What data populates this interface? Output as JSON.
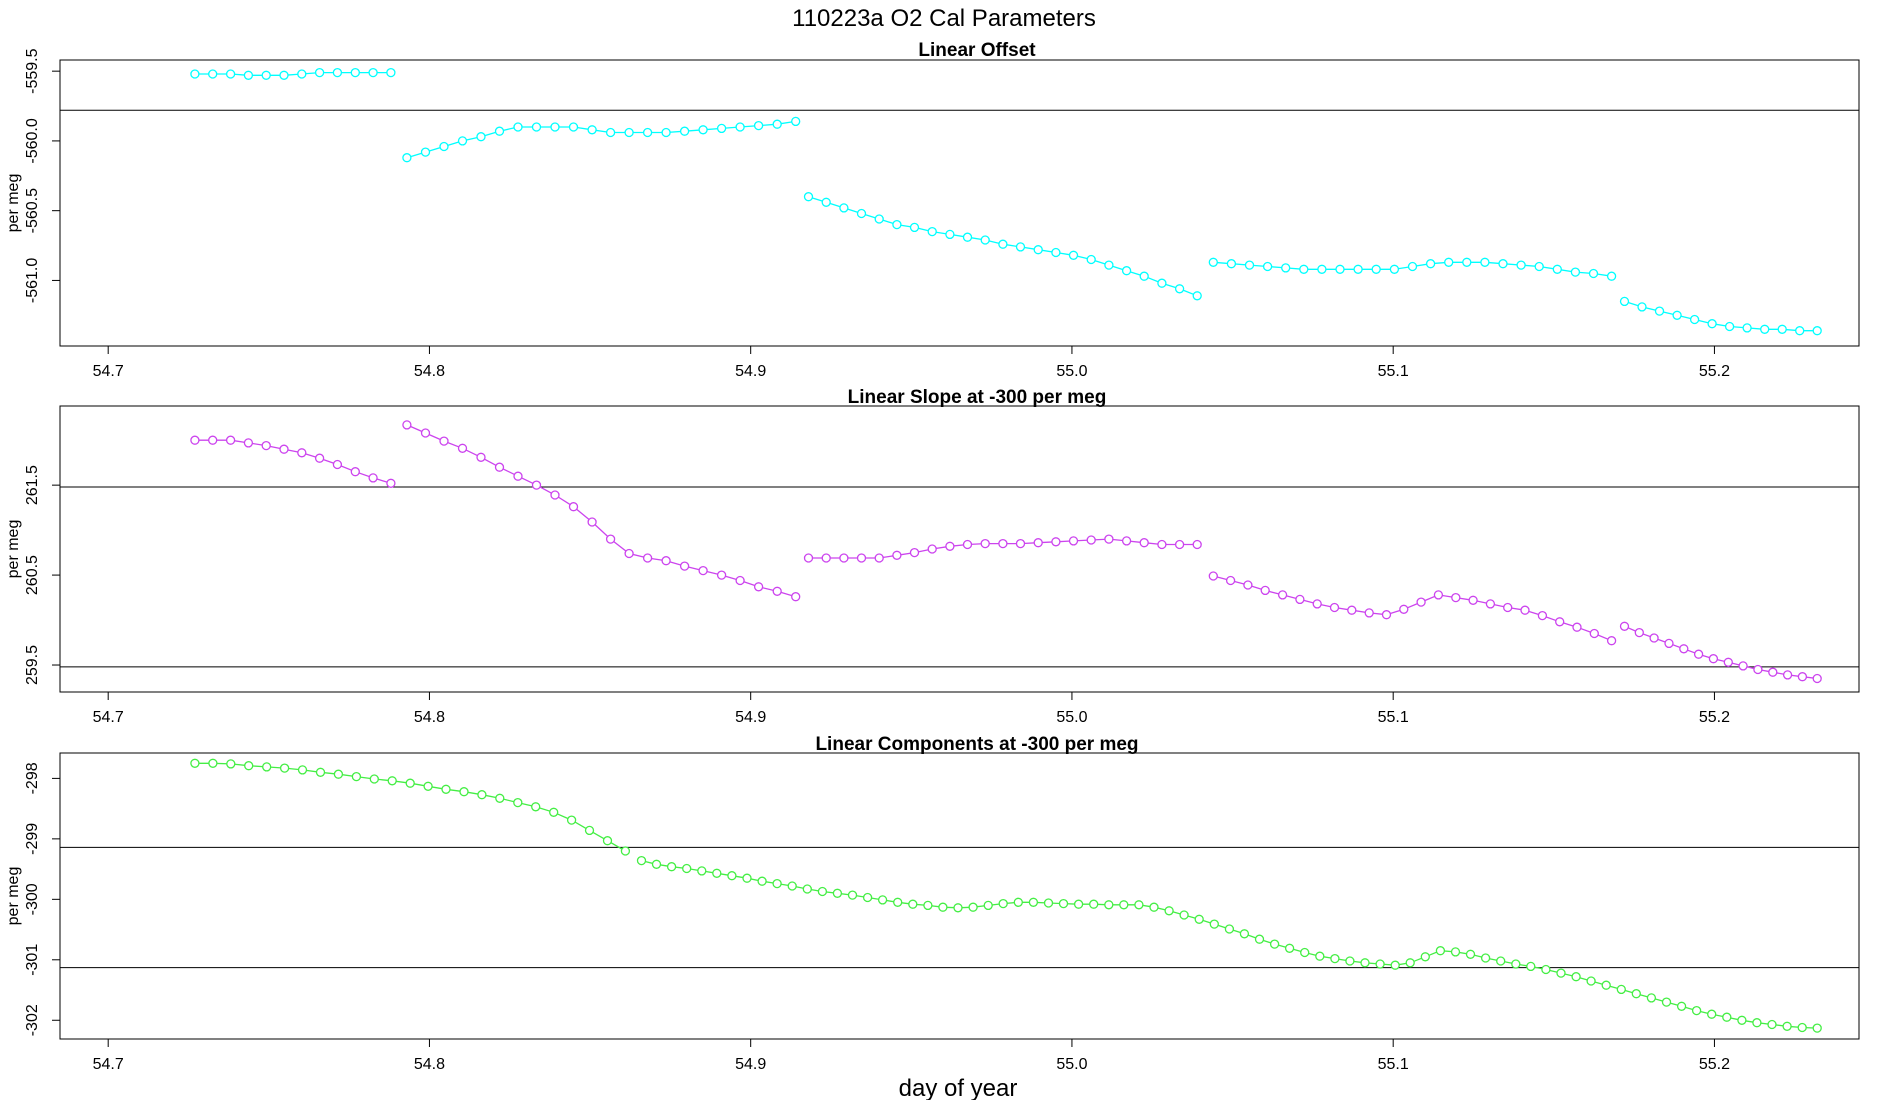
{
  "figure": {
    "main_title": "110223a   O2 Cal Parameters",
    "xlabel": "day of year"
  },
  "chart_data": [
    {
      "type": "scatter",
      "title": "Linear Offset",
      "ylabel": "per meg",
      "color": "#00ffff",
      "xlim": [
        54.685,
        55.245
      ],
      "ylim": [
        -561.47,
        -559.42
      ],
      "xticks": [
        54.7,
        54.8,
        54.9,
        55.0,
        55.1,
        55.2
      ],
      "xtick_labels": [
        "54.7",
        "54.8",
        "54.9",
        "55.0",
        "55.1",
        "55.2"
      ],
      "yticks": [
        -561.0,
        -560.5,
        -560.0,
        -559.5
      ],
      "ytick_labels": [
        "-561.0",
        "-560.5",
        "-560.0",
        "-559.5"
      ],
      "ref_lines": [
        -559.78
      ],
      "segments_x": [
        [
          54.727,
          54.788
        ],
        [
          54.793,
          54.914
        ],
        [
          54.918,
          55.039
        ],
        [
          55.044,
          55.168
        ],
        [
          55.172,
          55.232
        ]
      ],
      "segments_y": [
        [
          -559.52,
          -559.52,
          -559.52,
          -559.53,
          -559.53,
          -559.53,
          -559.52,
          -559.51,
          -559.51,
          -559.51,
          -559.51,
          -559.51
        ],
        [
          -560.12,
          -560.08,
          -560.04,
          -560.0,
          -559.97,
          -559.93,
          -559.9,
          -559.9,
          -559.9,
          -559.9,
          -559.92,
          -559.94,
          -559.94,
          -559.94,
          -559.94,
          -559.93,
          -559.92,
          -559.91,
          -559.9,
          -559.89,
          -559.88,
          -559.86
        ],
        [
          -560.4,
          -560.44,
          -560.48,
          -560.52,
          -560.56,
          -560.6,
          -560.62,
          -560.65,
          -560.67,
          -560.69,
          -560.71,
          -560.74,
          -560.76,
          -560.78,
          -560.8,
          -560.82,
          -560.85,
          -560.89,
          -560.93,
          -560.97,
          -561.02,
          -561.06,
          -561.11
        ],
        [
          -560.87,
          -560.88,
          -560.89,
          -560.9,
          -560.91,
          -560.92,
          -560.92,
          -560.92,
          -560.92,
          -560.92,
          -560.92,
          -560.9,
          -560.88,
          -560.87,
          -560.87,
          -560.87,
          -560.88,
          -560.89,
          -560.9,
          -560.92,
          -560.94,
          -560.95,
          -560.97
        ],
        [
          -561.15,
          -561.19,
          -561.22,
          -561.25,
          -561.28,
          -561.31,
          -561.33,
          -561.34,
          -561.35,
          -561.35,
          -561.36,
          -561.36
        ]
      ]
    },
    {
      "type": "scatter",
      "title": "Linear Slope at -300 per meg",
      "ylabel": "per meg",
      "color": "#cc44ee",
      "xlim": [
        54.685,
        55.245
      ],
      "ylim": [
        259.2,
        262.38
      ],
      "xticks": [
        54.7,
        54.8,
        54.9,
        55.0,
        55.1,
        55.2
      ],
      "xtick_labels": [
        "54.7",
        "54.8",
        "54.9",
        "55.0",
        "55.1",
        "55.2"
      ],
      "yticks": [
        259.5,
        260.5,
        261.5
      ],
      "ytick_labels": [
        "259.5",
        "260.5",
        "261.5"
      ],
      "ref_lines": [
        261.48,
        259.48
      ],
      "segments_x": [
        [
          54.727,
          54.788
        ],
        [
          54.793,
          54.914
        ],
        [
          54.918,
          55.039
        ],
        [
          55.044,
          55.168
        ],
        [
          55.172,
          55.232
        ]
      ],
      "segments_y": [
        [
          262.0,
          262.0,
          262.0,
          261.97,
          261.94,
          261.9,
          261.86,
          261.8,
          261.73,
          261.65,
          261.58,
          261.52
        ],
        [
          262.17,
          262.08,
          261.99,
          261.91,
          261.81,
          261.7,
          261.6,
          261.5,
          261.39,
          261.26,
          261.09,
          260.9,
          260.74,
          260.69,
          260.66,
          260.6,
          260.55,
          260.5,
          260.44,
          260.37,
          260.32,
          260.26
        ],
        [
          260.69,
          260.69,
          260.69,
          260.69,
          260.69,
          260.72,
          260.75,
          260.79,
          260.82,
          260.84,
          260.85,
          260.85,
          260.85,
          260.86,
          260.87,
          260.88,
          260.89,
          260.9,
          260.88,
          260.86,
          260.84,
          260.84,
          260.84
        ],
        [
          260.49,
          260.44,
          260.39,
          260.33,
          260.28,
          260.23,
          260.18,
          260.14,
          260.11,
          260.08,
          260.06,
          260.12,
          260.2,
          260.28,
          260.25,
          260.22,
          260.18,
          260.14,
          260.11,
          260.05,
          259.98,
          259.92,
          259.85,
          259.77
        ],
        [
          259.93,
          259.86,
          259.8,
          259.74,
          259.68,
          259.62,
          259.57,
          259.53,
          259.49,
          259.45,
          259.42,
          259.39,
          259.37,
          259.35
        ]
      ]
    },
    {
      "type": "scatter",
      "title": "Linear Components at -300 per meg",
      "ylabel": "per meg",
      "color": "#44ee44",
      "xlim": [
        54.685,
        55.245
      ],
      "ylim": [
        -302.31,
        -297.58
      ],
      "xticks": [
        54.7,
        54.8,
        54.9,
        55.0,
        55.1,
        55.2
      ],
      "xtick_labels": [
        "54.7",
        "54.8",
        "54.9",
        "55.0",
        "55.1",
        "55.2"
      ],
      "yticks": [
        -302,
        -301,
        -300,
        -299,
        -298
      ],
      "ytick_labels": [
        "-302",
        "-301",
        "-300",
        "-299",
        "-298"
      ],
      "ref_lines": [
        -299.14,
        -301.13
      ],
      "segments_x": [
        [
          54.727,
          54.861
        ],
        [
          54.866,
          55.232
        ]
      ],
      "segments_y": [
        [
          -297.75,
          -297.75,
          -297.76,
          -297.79,
          -297.81,
          -297.83,
          -297.86,
          -297.9,
          -297.93,
          -297.97,
          -298.01,
          -298.04,
          -298.08,
          -298.13,
          -298.18,
          -298.22,
          -298.27,
          -298.33,
          -298.4,
          -298.47,
          -298.56,
          -298.69,
          -298.86,
          -299.03,
          -299.2
        ],
        [
          -299.36,
          -299.42,
          -299.46,
          -299.49,
          -299.53,
          -299.57,
          -299.61,
          -299.65,
          -299.7,
          -299.74,
          -299.78,
          -299.83,
          -299.87,
          -299.9,
          -299.93,
          -299.97,
          -300.01,
          -300.05,
          -300.08,
          -300.1,
          -300.13,
          -300.14,
          -300.13,
          -300.1,
          -300.07,
          -300.05,
          -300.05,
          -300.06,
          -300.07,
          -300.08,
          -300.08,
          -300.09,
          -300.09,
          -300.09,
          -300.13,
          -300.19,
          -300.26,
          -300.33,
          -300.41,
          -300.49,
          -300.57,
          -300.66,
          -300.74,
          -300.81,
          -300.88,
          -300.94,
          -300.98,
          -301.02,
          -301.05,
          -301.07,
          -301.09,
          -301.05,
          -300.95,
          -300.85,
          -300.87,
          -300.91,
          -300.97,
          -301.02,
          -301.07,
          -301.11,
          -301.16,
          -301.22,
          -301.28,
          -301.35,
          -301.42,
          -301.49,
          -301.56,
          -301.63,
          -301.7,
          -301.77,
          -301.84,
          -301.9,
          -301.95,
          -302.0,
          -302.04,
          -302.07,
          -302.1,
          -302.12,
          -302.13
        ]
      ]
    }
  ]
}
